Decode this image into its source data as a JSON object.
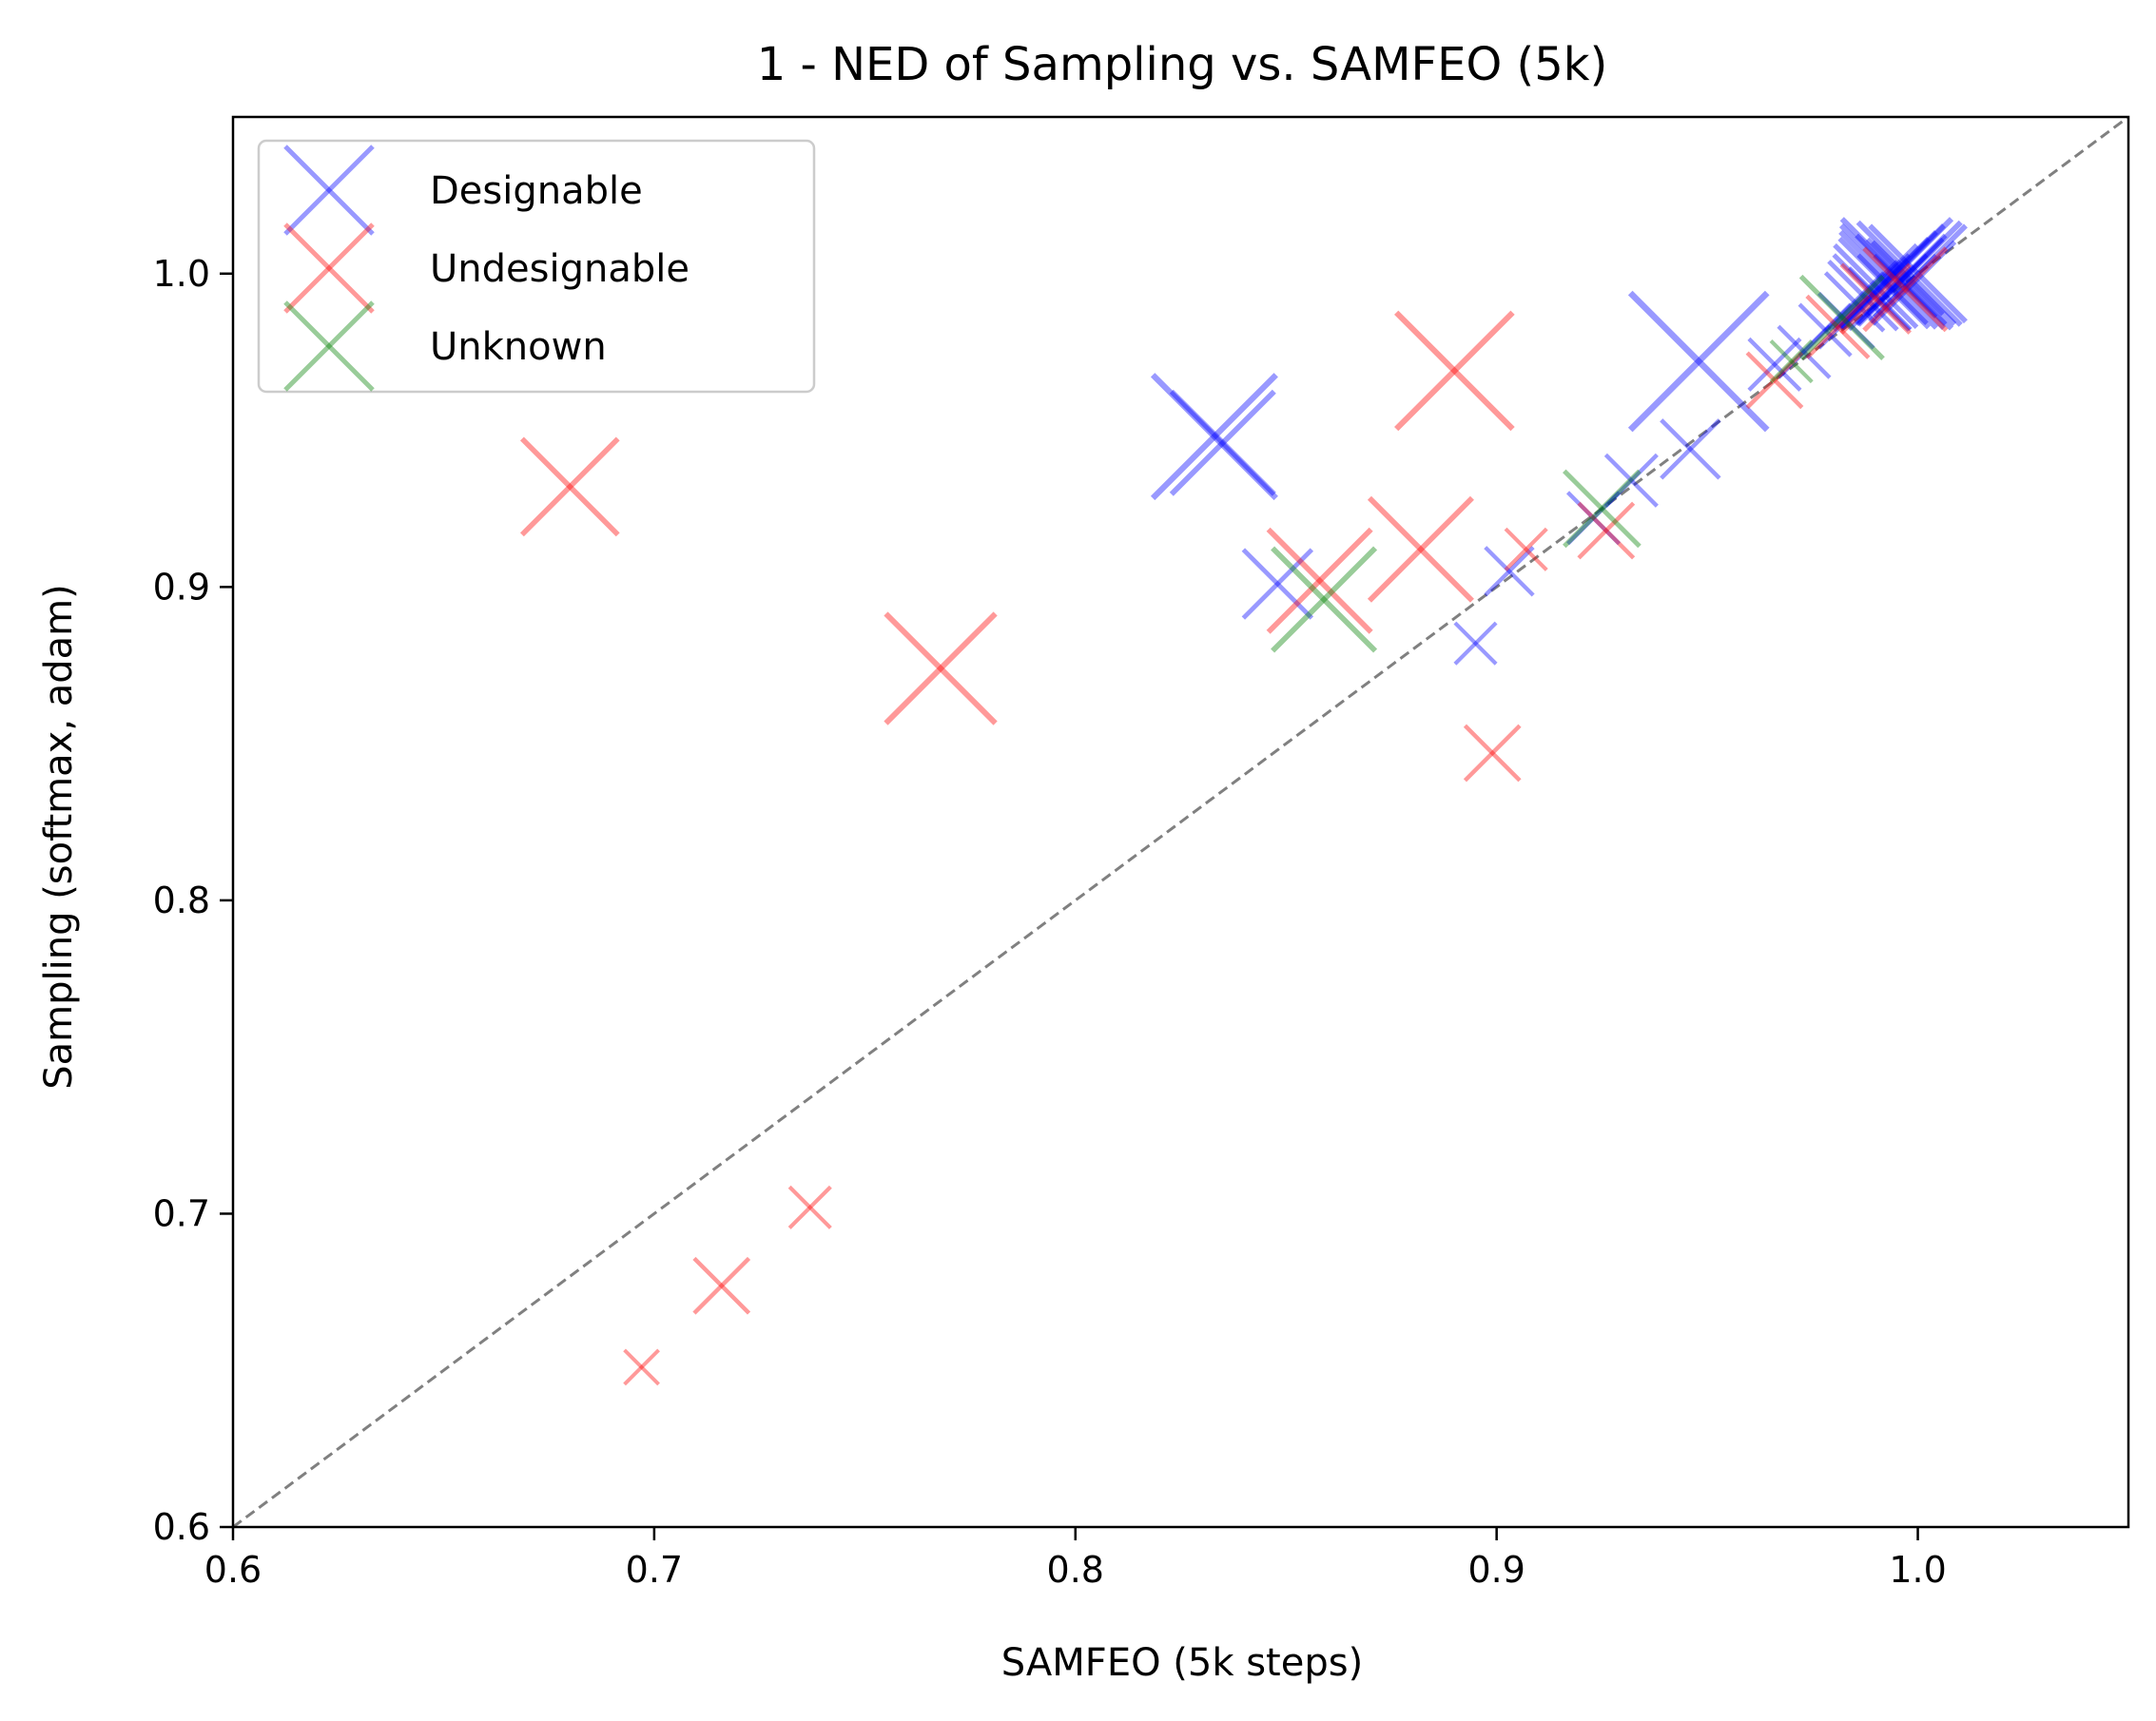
{
  "chart_data": {
    "type": "scatter",
    "title": "1 - NED of Sampling vs. SAMFEO (5k)",
    "xlabel": "SAMFEO (5k steps)",
    "ylabel": "Sampling (softmax, adam)",
    "xlim": [
      0.6,
      1.05
    ],
    "ylim": [
      0.6,
      1.05
    ],
    "xticks": [
      "0.6",
      "0.7",
      "0.8",
      "0.9",
      "1.0"
    ],
    "yticks": [
      "0.6",
      "0.7",
      "0.8",
      "0.9",
      "1.0"
    ],
    "grid": false,
    "legend_position": "top-left",
    "marker": "x",
    "reference_line": "y = x (dashed, gray)",
    "series": [
      {
        "name": "Designable",
        "color": "#0000ff",
        "points": [
          {
            "x": 0.833,
            "y": 0.948,
            "size": 3.6
          },
          {
            "x": 0.835,
            "y": 0.946,
            "size": 3.0
          },
          {
            "x": 0.848,
            "y": 0.901,
            "size": 2.0
          },
          {
            "x": 0.895,
            "y": 0.882,
            "size": 1.2
          },
          {
            "x": 0.903,
            "y": 0.905,
            "size": 1.4
          },
          {
            "x": 0.923,
            "y": 0.922,
            "size": 1.5
          },
          {
            "x": 0.932,
            "y": 0.934,
            "size": 1.5
          },
          {
            "x": 0.946,
            "y": 0.944,
            "size": 1.7
          },
          {
            "x": 0.948,
            "y": 0.972,
            "size": 4.0
          },
          {
            "x": 0.966,
            "y": 0.971,
            "size": 1.5
          },
          {
            "x": 0.973,
            "y": 0.975,
            "size": 1.5
          },
          {
            "x": 0.978,
            "y": 0.982,
            "size": 1.5
          },
          {
            "x": 0.983,
            "y": 0.985,
            "size": 1.6
          },
          {
            "x": 0.985,
            "y": 0.991,
            "size": 1.7
          },
          {
            "x": 0.987,
            "y": 0.993,
            "size": 2.0
          },
          {
            "x": 0.989,
            "y": 0.994,
            "size": 2.2
          },
          {
            "x": 0.99,
            "y": 0.996,
            "size": 2.4
          },
          {
            "x": 0.992,
            "y": 0.997,
            "size": 2.6
          },
          {
            "x": 0.993,
            "y": 0.998,
            "size": 2.8
          },
          {
            "x": 0.994,
            "y": 0.999,
            "size": 3.0
          },
          {
            "x": 0.995,
            "y": 1.0,
            "size": 3.2
          },
          {
            "x": 0.996,
            "y": 0.998,
            "size": 2.6
          },
          {
            "x": 0.997,
            "y": 0.999,
            "size": 2.2
          },
          {
            "x": 0.998,
            "y": 1.0,
            "size": 3.0
          },
          {
            "x": 0.999,
            "y": 0.997,
            "size": 2.4
          },
          {
            "x": 1.0,
            "y": 1.0,
            "size": 2.8
          },
          {
            "x": 0.991,
            "y": 0.992,
            "size": 1.8
          },
          {
            "x": 0.994,
            "y": 0.995,
            "size": 2.0
          },
          {
            "x": 0.997,
            "y": 0.996,
            "size": 1.8
          }
        ]
      },
      {
        "name": "Undesignable",
        "color": "#ff0000",
        "points": [
          {
            "x": 0.68,
            "y": 0.932,
            "size": 2.8
          },
          {
            "x": 0.768,
            "y": 0.874,
            "size": 3.2
          },
          {
            "x": 0.89,
            "y": 0.969,
            "size": 3.4
          },
          {
            "x": 0.858,
            "y": 0.902,
            "size": 3.0
          },
          {
            "x": 0.882,
            "y": 0.912,
            "size": 3.0
          },
          {
            "x": 0.899,
            "y": 0.847,
            "size": 1.6
          },
          {
            "x": 0.907,
            "y": 0.912,
            "size": 1.2
          },
          {
            "x": 0.926,
            "y": 0.918,
            "size": 1.6
          },
          {
            "x": 0.966,
            "y": 0.966,
            "size": 1.6
          },
          {
            "x": 0.981,
            "y": 0.983,
            "size": 1.8
          },
          {
            "x": 0.99,
            "y": 0.992,
            "size": 2.0
          },
          {
            "x": 0.997,
            "y": 0.995,
            "size": 2.4
          },
          {
            "x": 0.697,
            "y": 0.651,
            "size": 1.0
          },
          {
            "x": 0.716,
            "y": 0.677,
            "size": 1.6
          },
          {
            "x": 0.737,
            "y": 0.702,
            "size": 1.2
          }
        ]
      },
      {
        "name": "Unknown",
        "color": "#008000",
        "points": [
          {
            "x": 0.859,
            "y": 0.896,
            "size": 3.0
          },
          {
            "x": 0.925,
            "y": 0.925,
            "size": 2.2
          },
          {
            "x": 0.982,
            "y": 0.986,
            "size": 2.4
          },
          {
            "x": 0.97,
            "y": 0.972,
            "size": 1.2
          }
        ]
      }
    ]
  }
}
